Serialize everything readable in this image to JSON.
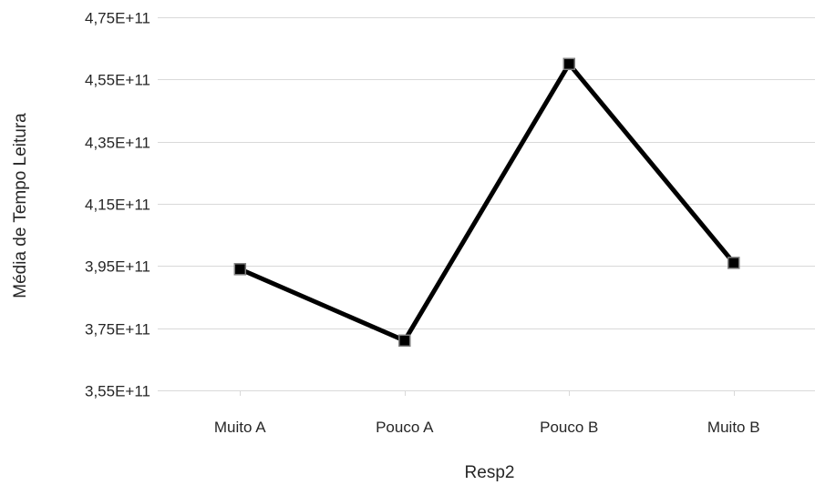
{
  "chart_data": {
    "type": "line",
    "title": "",
    "xlabel": "Resp2",
    "ylabel": "Média de Tempo Leitura",
    "categories": [
      "Muito A",
      "Pouco A",
      "Pouco B",
      "Muito B"
    ],
    "series": [
      {
        "values": [
          394000000000,
          371000000000,
          460000000000,
          396000000000
        ],
        "color": "#000000",
        "marker": "square"
      }
    ],
    "ylim": [
      355000000000,
      475000000000
    ],
    "yticks": [
      355000000000,
      375000000000,
      395000000000,
      415000000000,
      435000000000,
      455000000000,
      475000000000
    ],
    "ytick_labels": [
      "3,55E+11",
      "3,75E+11",
      "3,95E+11",
      "4,15E+11",
      "4,35E+11",
      "4,55E+11",
      "4,75E+11"
    ],
    "grid": true,
    "legend": "none",
    "colors": {
      "line": "#000000",
      "marker_fill": "#000000",
      "marker_stroke": "#7f7f7f",
      "grid": "#d9d9d9",
      "text": "#262626"
    }
  }
}
